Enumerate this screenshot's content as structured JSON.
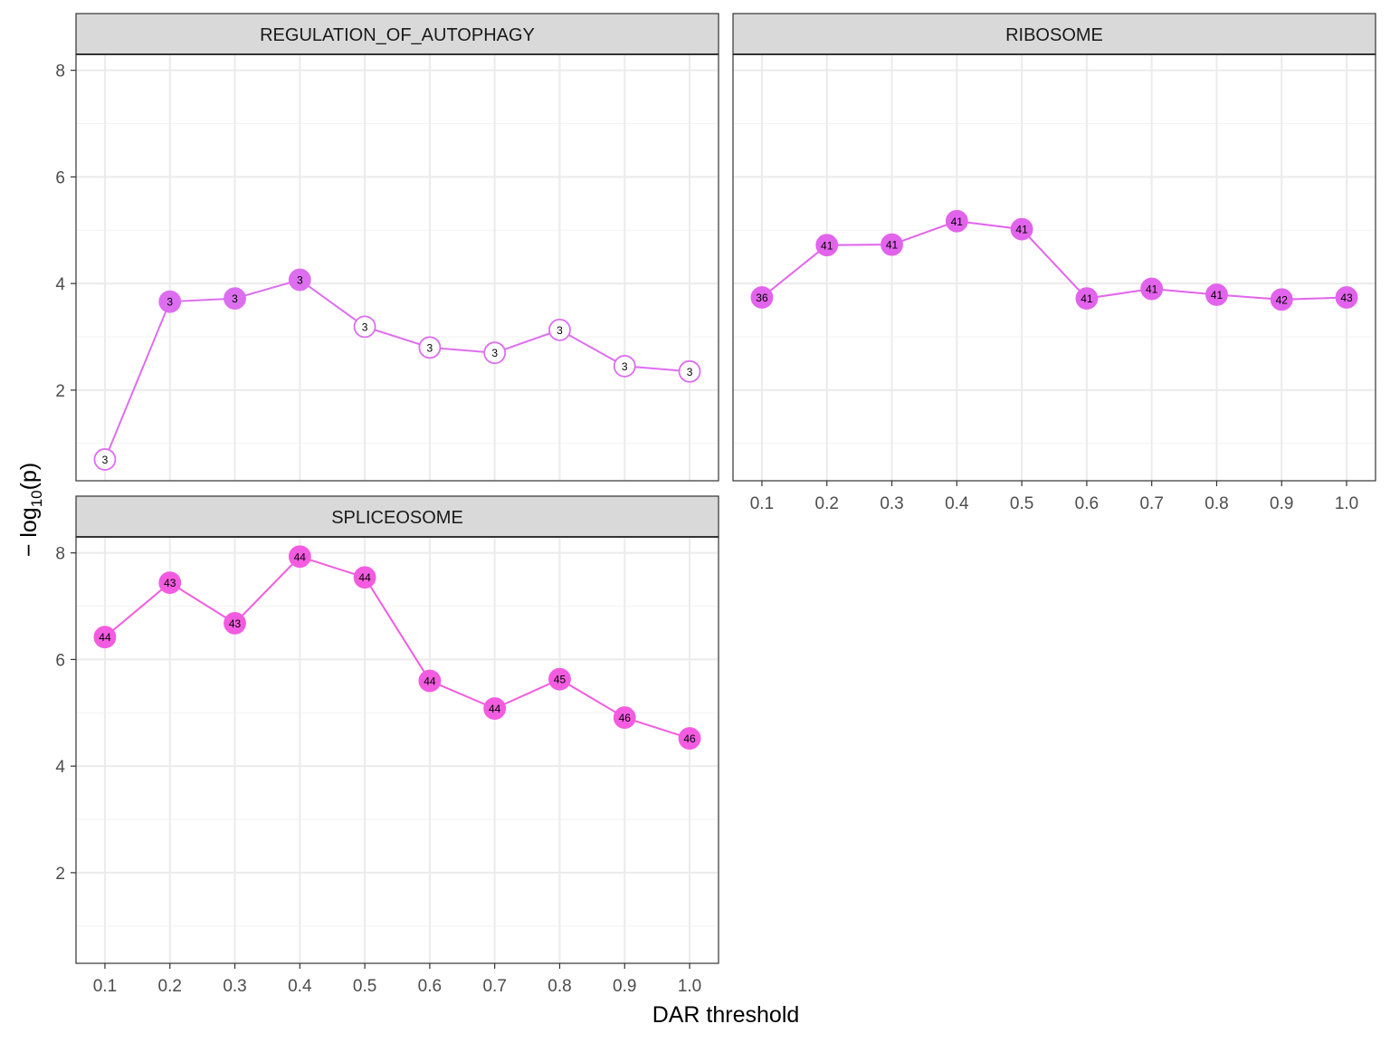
{
  "chart_data": {
    "type": "line",
    "xlabel": "DAR threshold",
    "ylabel_prefix": "− log",
    "ylabel_sub": "10",
    "ylabel_suffix": "(p)",
    "ylim": [
      0.3,
      8.3
    ],
    "x": [
      0.1,
      0.2,
      0.3,
      0.4,
      0.5,
      0.6,
      0.7,
      0.8,
      0.9,
      1.0
    ],
    "x_tick_labels": [
      "0.1",
      "0.2",
      "0.3",
      "0.4",
      "0.5",
      "0.6",
      "0.7",
      "0.8",
      "0.9",
      "1.0"
    ],
    "y_ticks": [
      2,
      4,
      6,
      8
    ],
    "y_tick_labels": [
      "2",
      "4",
      "6",
      "8"
    ],
    "grid": true,
    "panels": [
      {
        "title": "REGULATION_OF_AUTOPHAGY",
        "color": "#dd6ef0",
        "values": [
          0.7,
          3.66,
          3.72,
          4.07,
          3.19,
          2.8,
          2.7,
          3.13,
          2.45,
          2.35
        ],
        "counts": [
          "3",
          "3",
          "3",
          "3",
          "3",
          "3",
          "3",
          "3",
          "3",
          "3"
        ],
        "filled": [
          false,
          true,
          true,
          true,
          false,
          false,
          false,
          false,
          false,
          false
        ]
      },
      {
        "title": "RIBOSOME",
        "color": "#e263ec",
        "values": [
          3.74,
          4.72,
          4.73,
          5.17,
          5.02,
          3.72,
          3.9,
          3.79,
          3.7,
          3.74
        ],
        "counts": [
          "36",
          "41",
          "41",
          "41",
          "41",
          "41",
          "41",
          "41",
          "42",
          "43"
        ],
        "filled": [
          true,
          true,
          true,
          true,
          true,
          true,
          true,
          true,
          true,
          true
        ]
      },
      {
        "title": "SPLICEOSOME",
        "color": "#f35ce0",
        "values": [
          6.42,
          7.44,
          6.68,
          7.93,
          7.54,
          5.6,
          5.08,
          5.63,
          4.91,
          4.52
        ],
        "counts": [
          "44",
          "43",
          "43",
          "44",
          "44",
          "44",
          "44",
          "45",
          "46",
          "46"
        ],
        "filled": [
          true,
          true,
          true,
          true,
          true,
          true,
          true,
          true,
          true,
          true
        ]
      }
    ]
  }
}
